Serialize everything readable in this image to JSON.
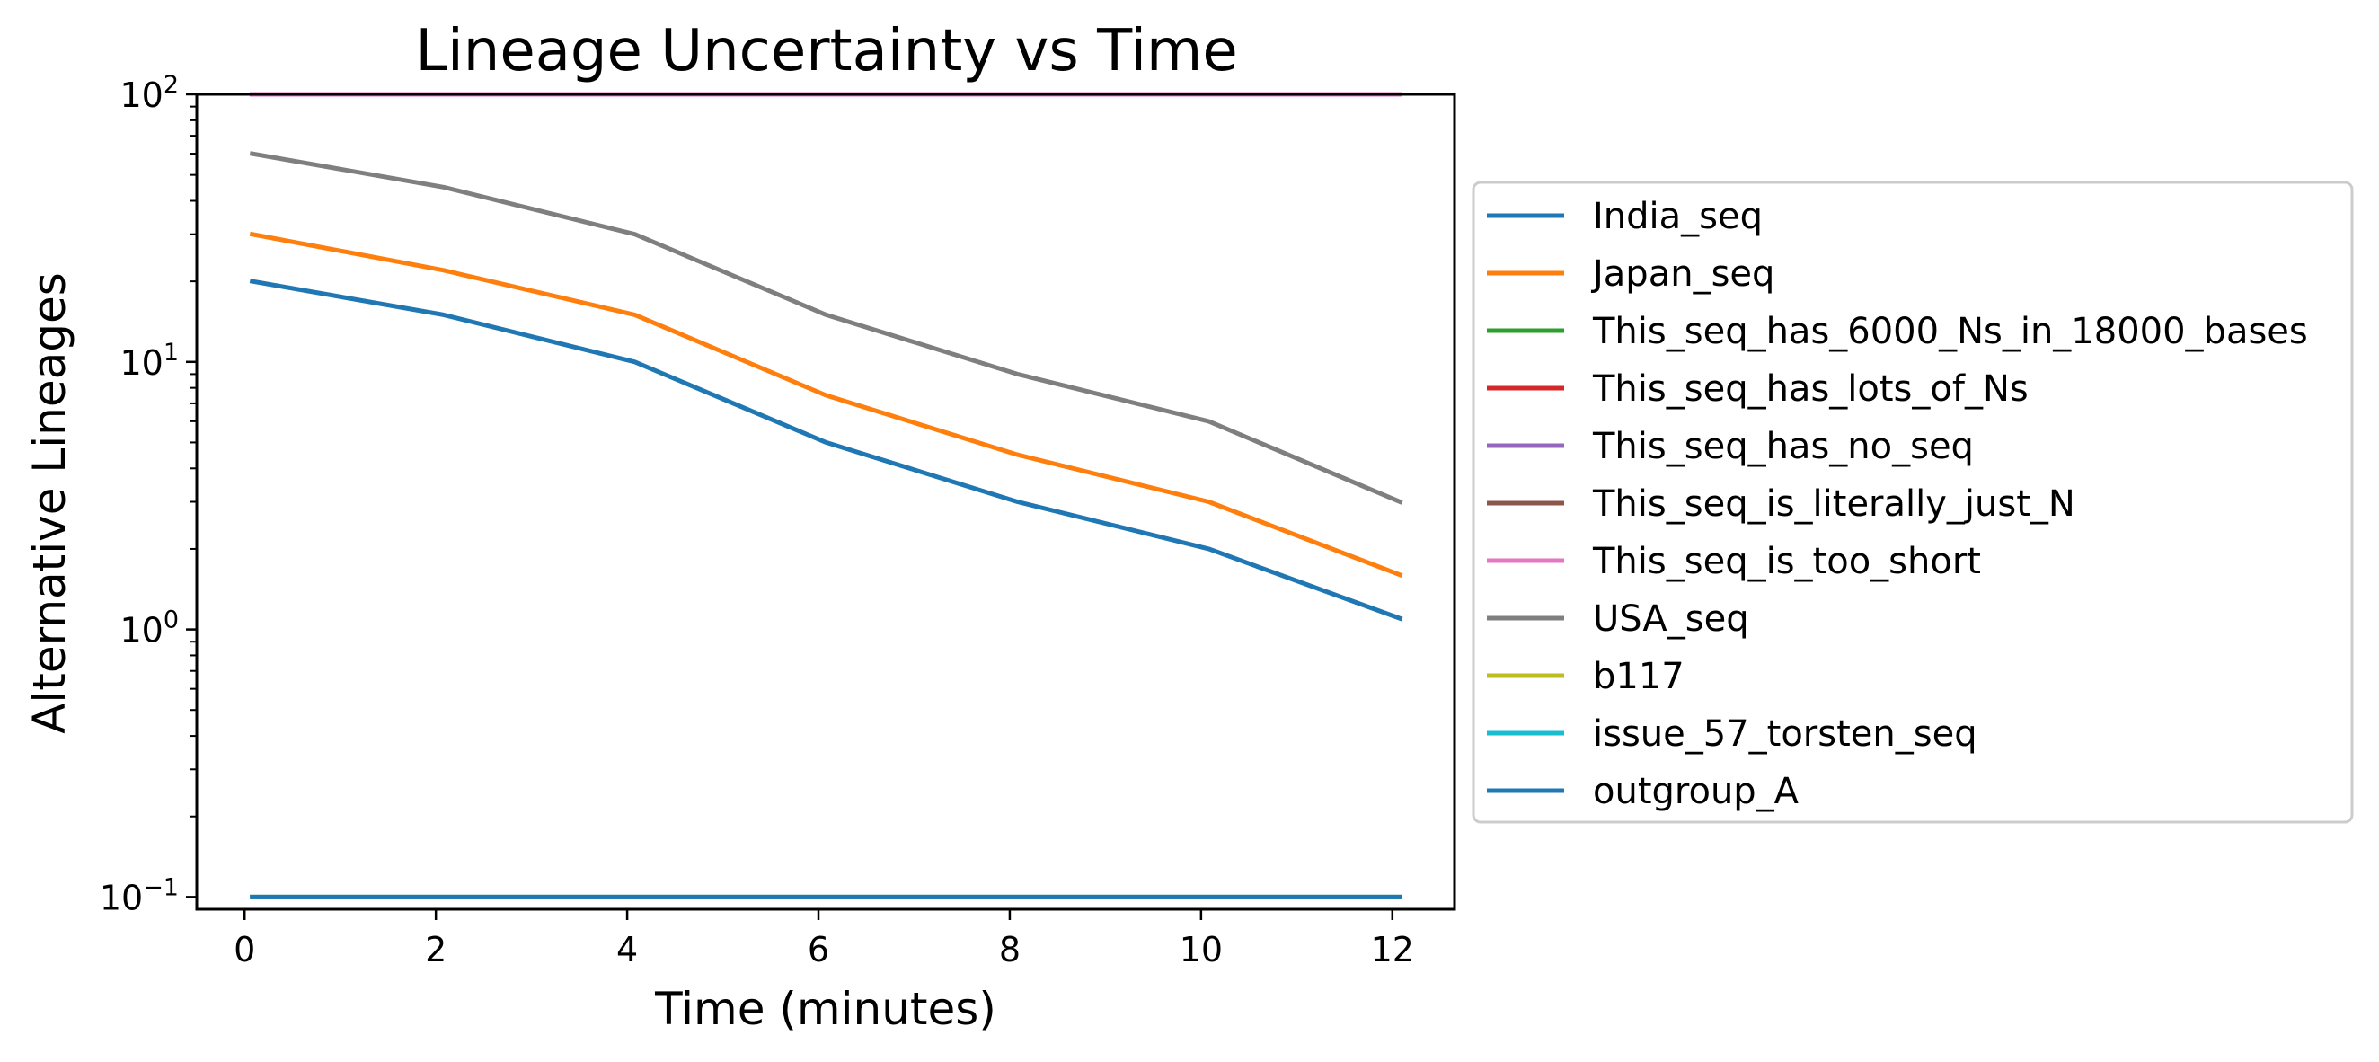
{
  "chart_data": {
    "type": "line",
    "title": "Lineage Uncertainty vs Time",
    "xlabel": "Time (minutes)",
    "ylabel": "Alternative Lineages",
    "xlim": [
      -0.5,
      12.65
    ],
    "ylim": [
      0.09,
      100
    ],
    "yscale": "log",
    "xticks": [
      0,
      2,
      4,
      6,
      8,
      10,
      12
    ],
    "yticks": [
      {
        "value": 0.1,
        "base": "10",
        "exp": "−1"
      },
      {
        "value": 1,
        "base": "10",
        "exp": "0"
      },
      {
        "value": 10,
        "base": "10",
        "exp": "1"
      },
      {
        "value": 100,
        "base": "10",
        "exp": "2"
      }
    ],
    "grid": false,
    "legend_position": "outside-right",
    "x": [
      0.08,
      2.08,
      4.08,
      6.08,
      8.08,
      10.08,
      12.08
    ],
    "series": [
      {
        "name": "India_seq",
        "color": "#1f77b4",
        "values": [
          20,
          15,
          10,
          5,
          3,
          2,
          1.1
        ]
      },
      {
        "name": "Japan_seq",
        "color": "#ff7f0e",
        "values": [
          30,
          22,
          15,
          7.5,
          4.5,
          3,
          1.6
        ]
      },
      {
        "name": "This_seq_has_6000_Ns_in_18000_bases",
        "color": "#2ca02c",
        "values": [
          100,
          100,
          100,
          100,
          100,
          100,
          100
        ]
      },
      {
        "name": "This_seq_has_lots_of_Ns",
        "color": "#d62728",
        "values": [
          100,
          100,
          100,
          100,
          100,
          100,
          100
        ]
      },
      {
        "name": "This_seq_has_no_seq",
        "color": "#9467bd",
        "values": [
          100,
          100,
          100,
          100,
          100,
          100,
          100
        ]
      },
      {
        "name": "This_seq_is_literally_just_N",
        "color": "#8c564b",
        "values": [
          100,
          100,
          100,
          100,
          100,
          100,
          100
        ]
      },
      {
        "name": "This_seq_is_too_short",
        "color": "#e377c2",
        "values": [
          100,
          100,
          100,
          100,
          100,
          100,
          100
        ]
      },
      {
        "name": "USA_seq",
        "color": "#7f7f7f",
        "values": [
          60,
          45,
          30,
          15,
          9,
          6,
          3
        ]
      },
      {
        "name": "b117",
        "color": "#bcbd22",
        "values": [
          0.1,
          0.1,
          0.1,
          0.1,
          0.1,
          0.1,
          0.1
        ]
      },
      {
        "name": "issue_57_torsten_seq",
        "color": "#17becf",
        "values": [
          0.1,
          0.1,
          0.1,
          0.1,
          0.1,
          0.1,
          0.1
        ]
      },
      {
        "name": "outgroup_A",
        "color": "#1f77b4",
        "values": [
          0.1,
          0.1,
          0.1,
          0.1,
          0.1,
          0.1,
          0.1
        ]
      }
    ]
  }
}
